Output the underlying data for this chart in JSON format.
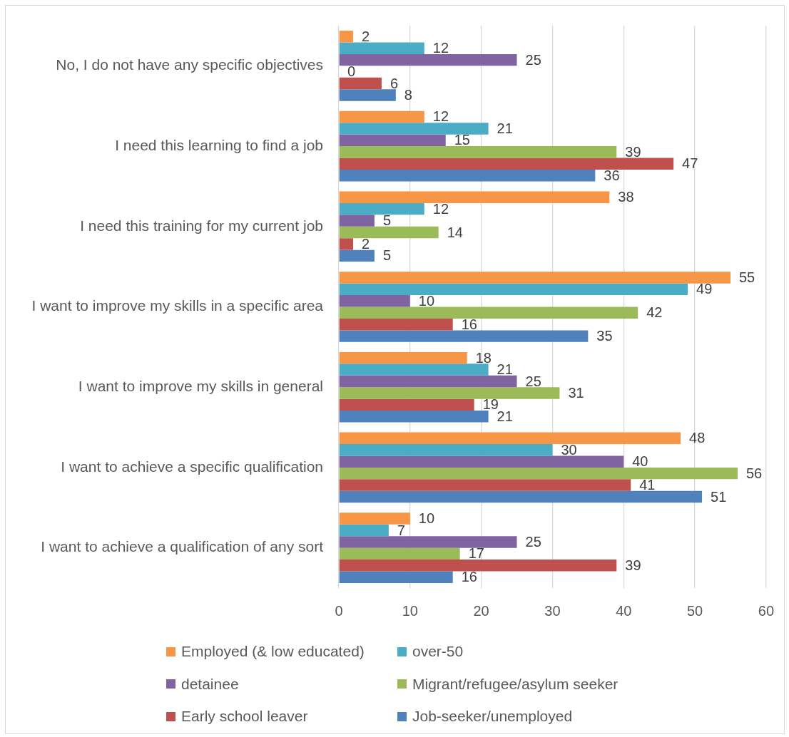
{
  "chart_data": {
    "type": "bar",
    "orientation": "horizontal",
    "categories": [
      "No, I do not have any specific objectives",
      "I need this learning to find a job",
      "I need this training for my current job",
      "I want to improve my skills in a specific area",
      "I want to improve my skills in general",
      "I want to achieve a specific qualification",
      "I want to achieve a qualification of any sort"
    ],
    "series": [
      {
        "name": "Employed (& low educated)",
        "color": "#f79646",
        "values": [
          2,
          12,
          38,
          55,
          18,
          48,
          10
        ]
      },
      {
        "name": "over-50",
        "color": "#4bacc6",
        "values": [
          12,
          21,
          12,
          49,
          21,
          30,
          7
        ]
      },
      {
        "name": "detainee",
        "color": "#8064a2",
        "values": [
          25,
          15,
          5,
          10,
          25,
          40,
          25
        ]
      },
      {
        "name": "Migrant/refugee/asylum seeker",
        "color": "#9bbb59",
        "values": [
          0,
          39,
          14,
          42,
          31,
          56,
          17
        ]
      },
      {
        "name": "Early school leaver",
        "color": "#c0504d",
        "values": [
          6,
          47,
          2,
          16,
          19,
          41,
          39
        ]
      },
      {
        "name": "Job-seeker/unemployed",
        "color": "#4f81bd",
        "values": [
          8,
          36,
          5,
          35,
          21,
          51,
          16
        ]
      }
    ],
    "xlim": [
      0,
      60
    ],
    "xticks": [
      0,
      10,
      20,
      30,
      40,
      50,
      60
    ],
    "grid": "x",
    "legend": "bottom",
    "data_labels": true
  }
}
